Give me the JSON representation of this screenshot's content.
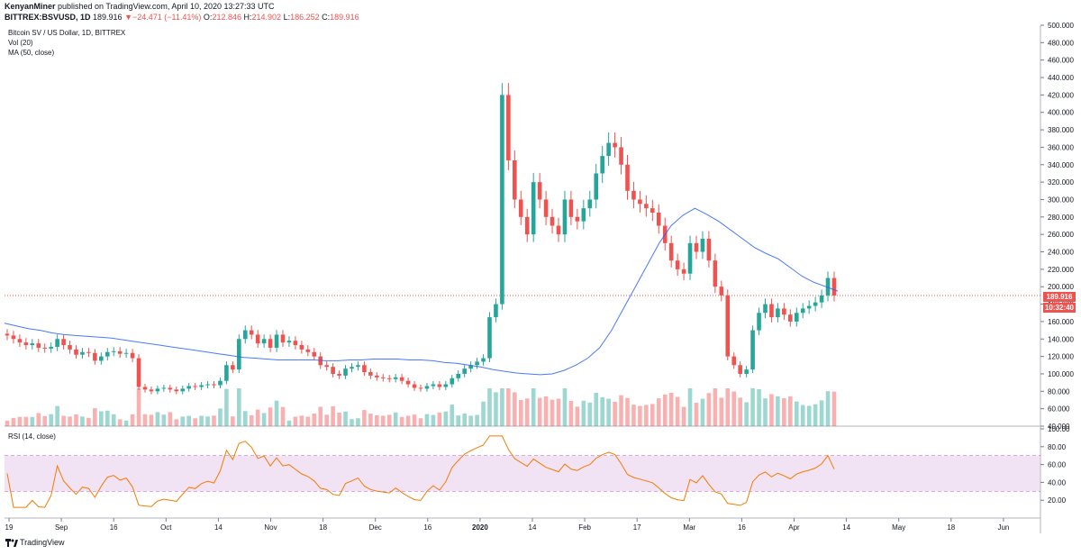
{
  "header": {
    "publisher": "KenyanMiner",
    "published_text": " published on TradingView.com, April 10, 2020 13:27:33 UTC",
    "symbol": "BITTREX:BSVUSD, 1D",
    "last": "189.916",
    "change_arrow": "▼",
    "change": "−24.471 (−11.41%)",
    "o_label": "O:",
    "o_value": "212.846",
    "h_label": "H:",
    "h_value": "214.902",
    "l_label": "L:",
    "l_value": "186.252",
    "c_label": "C:",
    "c_value": "189.916"
  },
  "legend": {
    "title": "Bitcoin SV / US Dollar, 1D, BITTREX",
    "vol": "Vol (20)",
    "ma": "MA (50, close)",
    "rsi": "RSI (14, close)"
  },
  "price_axis_labels": [
    "500.000",
    "480.000",
    "460.000",
    "440.000",
    "420.000",
    "400.000",
    "380.000",
    "360.000",
    "340.000",
    "320.000",
    "300.000",
    "280.000",
    "260.000",
    "240.000",
    "220.000",
    "200.000",
    "180.000",
    "160.000",
    "140.000",
    "120.000",
    "100.000",
    "80.000",
    "60.000",
    "40.000"
  ],
  "rsi_axis_labels": [
    "100.00",
    "80.00",
    "60.00",
    "40.00",
    "20.00"
  ],
  "time_axis_labels": [
    "19",
    "Sep",
    "16",
    "Oct",
    "14",
    "Nov",
    "18",
    "Dec",
    "16",
    "2020",
    "14",
    "Feb",
    "17",
    "Mar",
    "16",
    "Apr",
    "14",
    "May",
    "18",
    "Jun"
  ],
  "price_tag": {
    "price": "189.916",
    "countdown": "10:32:40"
  },
  "footer": {
    "brand": "TradingView"
  },
  "colors": {
    "up": "#26a69a",
    "down": "#ef5350",
    "ma": "#2962ff",
    "rsi": "#f57c00",
    "rsi_band": "#e1bee7"
  },
  "chart_data": {
    "type": "candlestick",
    "title": "Bitcoin SV / US Dollar, 1D, BITTREX",
    "ylim": [
      40,
      500
    ],
    "rsi_ylim": [
      0,
      100
    ],
    "rsi_band": [
      30,
      70
    ],
    "last_price": 189.916,
    "close_path": [
      144,
      140,
      136,
      133,
      135,
      130,
      129,
      131,
      140,
      133,
      128,
      122,
      125,
      124,
      115,
      120,
      125,
      126,
      123,
      124,
      118,
      85,
      82,
      80,
      83,
      84,
      82,
      80,
      83,
      86,
      85,
      87,
      88,
      87,
      92,
      110,
      105,
      140,
      150,
      145,
      135,
      140,
      130,
      145,
      136,
      138,
      133,
      128,
      125,
      120,
      110,
      108,
      100,
      98,
      106,
      108,
      110,
      102,
      98,
      96,
      95,
      94,
      96,
      92,
      88,
      84,
      83,
      86,
      88,
      85,
      88,
      95,
      100,
      106,
      110,
      114,
      118,
      165,
      180,
      420,
      345,
      300,
      280,
      260,
      320,
      300,
      280,
      270,
      260,
      300,
      280,
      275,
      290,
      300,
      330,
      350,
      365,
      360,
      340,
      310,
      300,
      295,
      290,
      285,
      270,
      250,
      230,
      220,
      215,
      250,
      240,
      255,
      230,
      200,
      190,
      120,
      110,
      100,
      105,
      150,
      170,
      180,
      165,
      175,
      168,
      160,
      170,
      175,
      178,
      182,
      190,
      210,
      189.916
    ],
    "ma50_path": [
      158,
      155,
      152,
      150,
      147,
      145,
      144,
      143,
      142,
      141,
      139,
      137,
      135,
      133,
      131,
      129,
      127,
      125,
      123,
      121,
      119,
      118,
      117,
      116,
      116,
      116,
      116,
      115,
      115,
      116,
      116,
      117,
      117,
      117,
      116,
      116,
      115,
      113,
      112,
      110,
      108,
      105,
      103,
      101,
      100,
      99,
      100,
      104,
      110,
      118,
      130,
      150,
      175,
      200,
      225,
      250,
      270,
      282,
      290,
      283,
      275,
      265,
      255,
      245,
      238,
      232,
      222,
      212,
      205,
      200,
      195
    ],
    "volume_note": "Vol (20) histogram beneath price"
  }
}
